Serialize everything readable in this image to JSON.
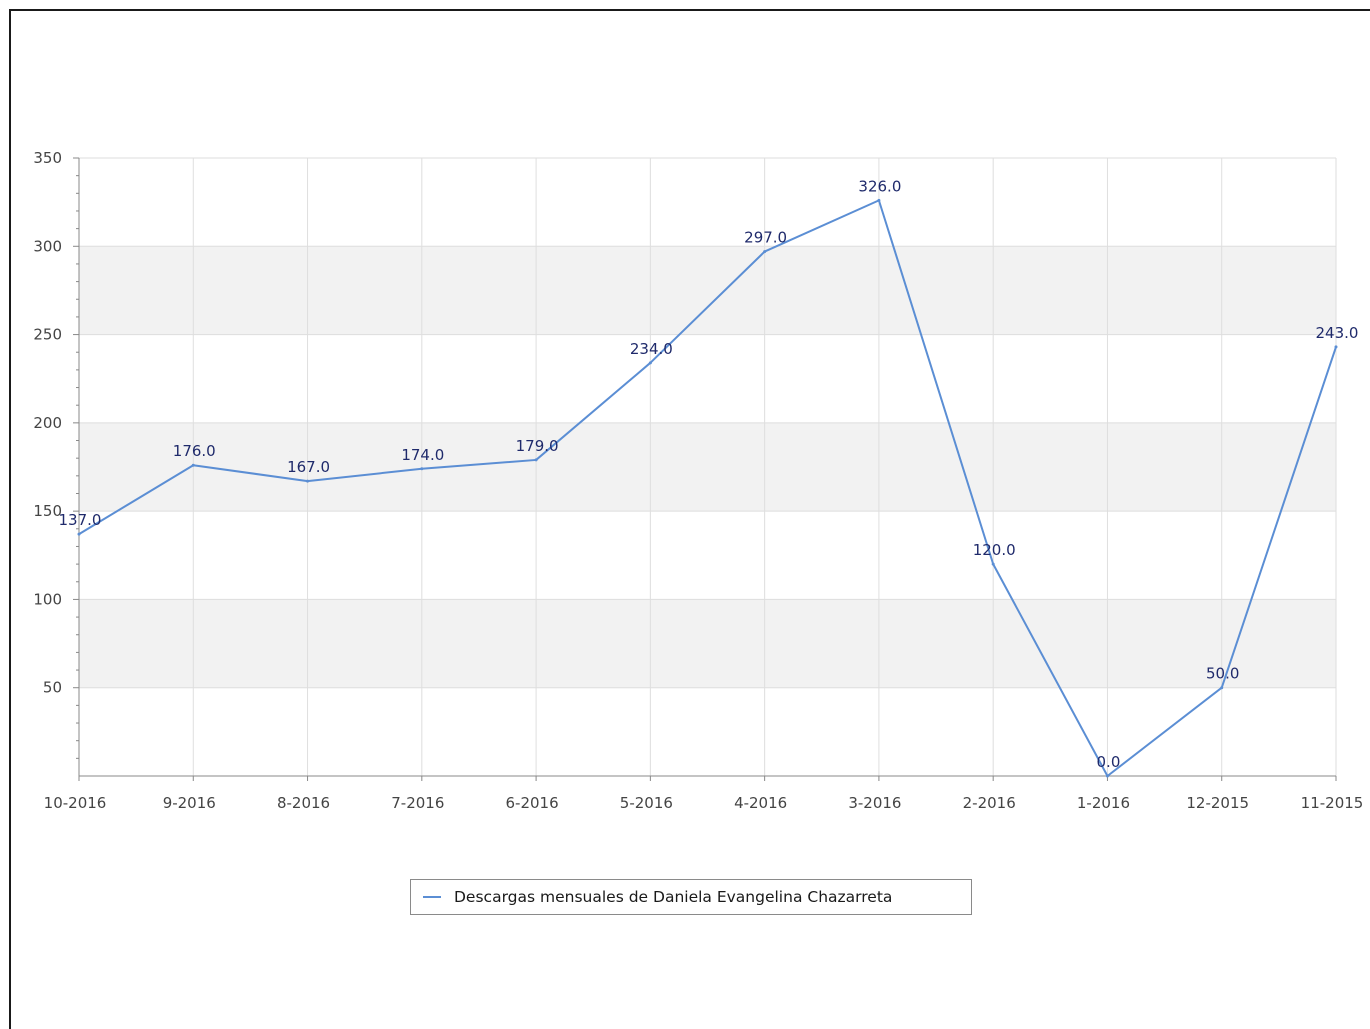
{
  "chart_data": {
    "type": "line",
    "categories": [
      "10-2016",
      "9-2016",
      "8-2016",
      "7-2016",
      "6-2016",
      "5-2016",
      "4-2016",
      "3-2016",
      "2-2016",
      "1-2016",
      "12-2015",
      "11-2015"
    ],
    "series": [
      {
        "name": "Descargas mensuales de Daniela Evangelina Chazarreta",
        "values": [
          137,
          176,
          167,
          174,
          179,
          234,
          297,
          326,
          120,
          0,
          50,
          243
        ],
        "value_labels": [
          "137.0",
          "176.0",
          "167.0",
          "174.0",
          "179.0",
          "234.0",
          "297.0",
          "326.0",
          "120.0",
          "0.0",
          "50.0",
          "243.0"
        ],
        "color": "#5b8ed4"
      }
    ],
    "title": "",
    "xlabel": "",
    "ylabel": "",
    "ylim": [
      0,
      350
    ],
    "yticks": [
      50,
      100,
      150,
      200,
      250,
      300,
      350
    ],
    "grid": true,
    "banded_background": true,
    "legend_position": "bottom-center"
  },
  "colors": {
    "band": "#f2f2f2",
    "grid": "#dedede",
    "line": "#5b8ed4",
    "value_label": "#1f2a6b",
    "axis": "#888888"
  }
}
